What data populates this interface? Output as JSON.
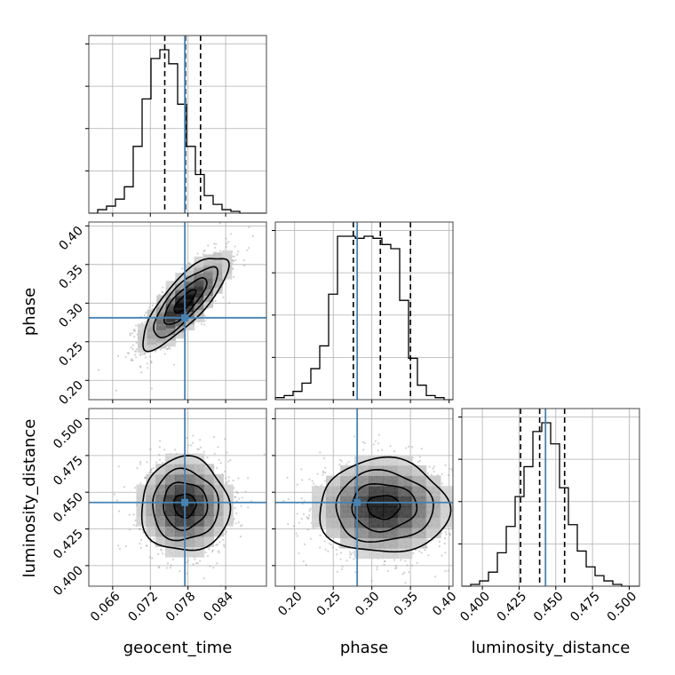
{
  "chart_data": {
    "type": "corner",
    "grid": true,
    "parameters": [
      "geocent_time",
      "phase",
      "luminosity_distance"
    ],
    "truths": {
      "geocent_time": 0.0775,
      "phase": 0.281,
      "luminosity_distance": 0.443
    },
    "truth_color": "#4682b4",
    "ranges": {
      "geocent_time": [
        0.0622,
        0.0905
      ],
      "phase": [
        0.175,
        0.405
      ],
      "luminosity_distance": [
        0.386,
        0.507
      ]
    },
    "ticks": {
      "geocent_time": {
        "values": [
          0.066,
          0.072,
          0.078,
          0.084
        ],
        "labels": [
          "0.066",
          "0.072",
          "0.078",
          "0.084"
        ]
      },
      "phase": {
        "values": [
          0.2,
          0.25,
          0.3,
          0.35,
          0.4
        ],
        "labels": [
          "0.20",
          "0.25",
          "0.30",
          "0.35",
          "0.40"
        ]
      },
      "luminosity_distance": {
        "values": [
          0.4,
          0.425,
          0.45,
          0.475,
          0.5
        ],
        "labels": [
          "0.400",
          "0.425",
          "0.450",
          "0.475",
          "0.500"
        ]
      }
    },
    "axis_labels": {
      "geocent_time": "geocent_time",
      "phase": "phase",
      "luminosity_distance": "luminosity_distance"
    },
    "marginals": [
      {
        "parameter": "geocent_time",
        "bin_edges_range": [
          0.0622,
          0.0905
        ],
        "bins": 20,
        "counts": [
          0,
          2,
          4,
          8,
          15,
          38,
          65,
          88,
          93,
          85,
          62,
          38,
          22,
          10,
          5,
          2,
          1,
          0,
          0,
          0
        ],
        "quantiles": [
          0.0743,
          0.0776,
          0.08
        ]
      },
      {
        "parameter": "phase",
        "bin_edges_range": [
          0.175,
          0.405
        ],
        "bins": 20,
        "counts": [
          1,
          2,
          4,
          8,
          15,
          26,
          51,
          79,
          79,
          78,
          79,
          78,
          75,
          73,
          48,
          20,
          7,
          2,
          1,
          0
        ],
        "quantiles": [
          0.276,
          0.311,
          0.35
        ]
      },
      {
        "parameter": "luminosity_distance",
        "bin_edges_range": [
          0.386,
          0.507
        ],
        "bins": 20,
        "counts": [
          0,
          1,
          3,
          8,
          19,
          34,
          51,
          68,
          88,
          93,
          81,
          56,
          35,
          20,
          11,
          6,
          3,
          1,
          0,
          0
        ],
        "quantiles": [
          0.426,
          0.439,
          0.456
        ]
      }
    ],
    "joint": [
      {
        "x": "geocent_time",
        "y": "phase",
        "center": [
          0.0775,
          0.302
        ],
        "sigma": [
          0.0034,
          0.03
        ],
        "corr": 0.8
      },
      {
        "x": "geocent_time",
        "y": "luminosity_distance",
        "center": [
          0.0775,
          0.441
        ],
        "sigma": [
          0.0035,
          0.016
        ],
        "corr": 0.0
      },
      {
        "x": "phase",
        "y": "luminosity_distance",
        "center": [
          0.315,
          0.44
        ],
        "sigma": [
          0.042,
          0.016
        ],
        "corr": 0.0
      }
    ]
  }
}
